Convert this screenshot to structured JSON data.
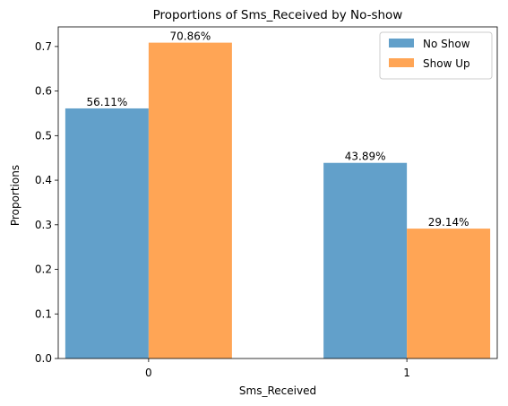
{
  "chart_data": {
    "type": "bar",
    "title": "Proportions of Sms_Received by No-show",
    "xlabel": "Sms_Received",
    "ylabel": "Proportions",
    "categories": [
      "0",
      "1"
    ],
    "ylim": [
      0,
      0.744
    ],
    "yticks": [
      "0.0",
      "0.1",
      "0.2",
      "0.3",
      "0.4",
      "0.5",
      "0.6",
      "0.7"
    ],
    "grid": false,
    "legend_position": "top-right",
    "series": [
      {
        "name": "No Show",
        "color": "#62a0ca",
        "values": [
          0.5611,
          0.4389
        ],
        "labels": [
          "56.11%",
          "43.89%"
        ]
      },
      {
        "name": "Show Up",
        "color": "#ffa555",
        "values": [
          0.7086,
          0.2914
        ],
        "labels": [
          "70.86%",
          "29.14%"
        ]
      }
    ]
  }
}
